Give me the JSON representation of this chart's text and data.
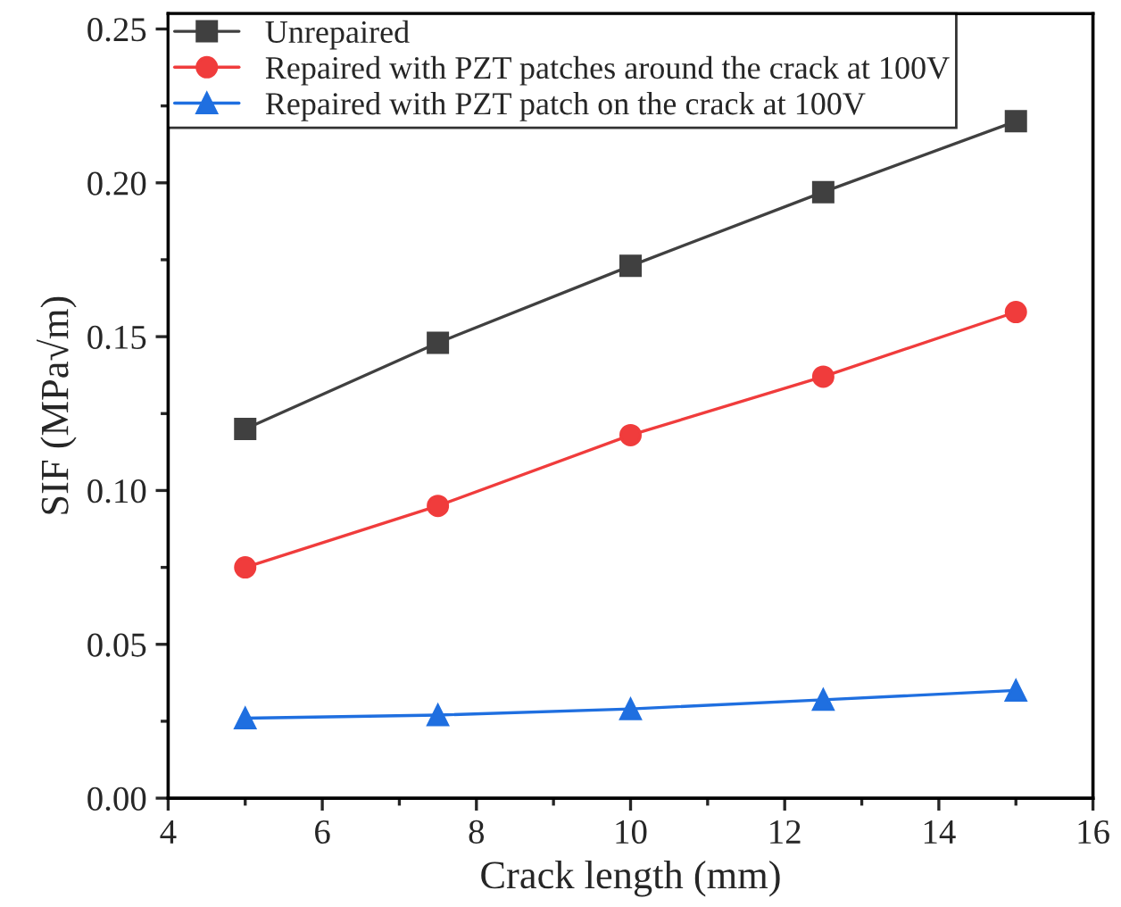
{
  "chart_data": {
    "type": "line",
    "xlabel": "Crack length (mm)",
    "ylabel": "SIF (MPa√m)",
    "x": [
      5,
      7.5,
      10,
      12.5,
      15
    ],
    "series": [
      {
        "name": "Unrepaired",
        "color": "#404040",
        "marker": "square",
        "values": [
          0.12,
          0.148,
          0.173,
          0.197,
          0.22
        ]
      },
      {
        "name": "Repaired with PZT patches around the crack at 100V",
        "color": "#f03c3c",
        "marker": "circle",
        "values": [
          0.075,
          0.095,
          0.118,
          0.137,
          0.158
        ]
      },
      {
        "name": "Repaired with PZT patch on the crack at 100V",
        "color": "#1f6fe0",
        "marker": "triangle",
        "values": [
          0.026,
          0.027,
          0.029,
          0.032,
          0.035
        ]
      }
    ],
    "xlim": [
      4,
      16
    ],
    "xticks": [
      4,
      6,
      8,
      10,
      12,
      14,
      16
    ],
    "ylim": [
      0,
      0.255
    ],
    "yticks": [
      {
        "value": 0,
        "label": "0.00"
      },
      {
        "value": 0.05,
        "label": "0.05"
      },
      {
        "value": 0.1,
        "label": "0.10"
      },
      {
        "value": 0.15,
        "label": "0.15"
      },
      {
        "value": 0.2,
        "label": "0.20"
      },
      {
        "value": 0.25,
        "label": "0.25"
      }
    ],
    "grid": false,
    "legend": "top left",
    "line_style": "solid"
  }
}
